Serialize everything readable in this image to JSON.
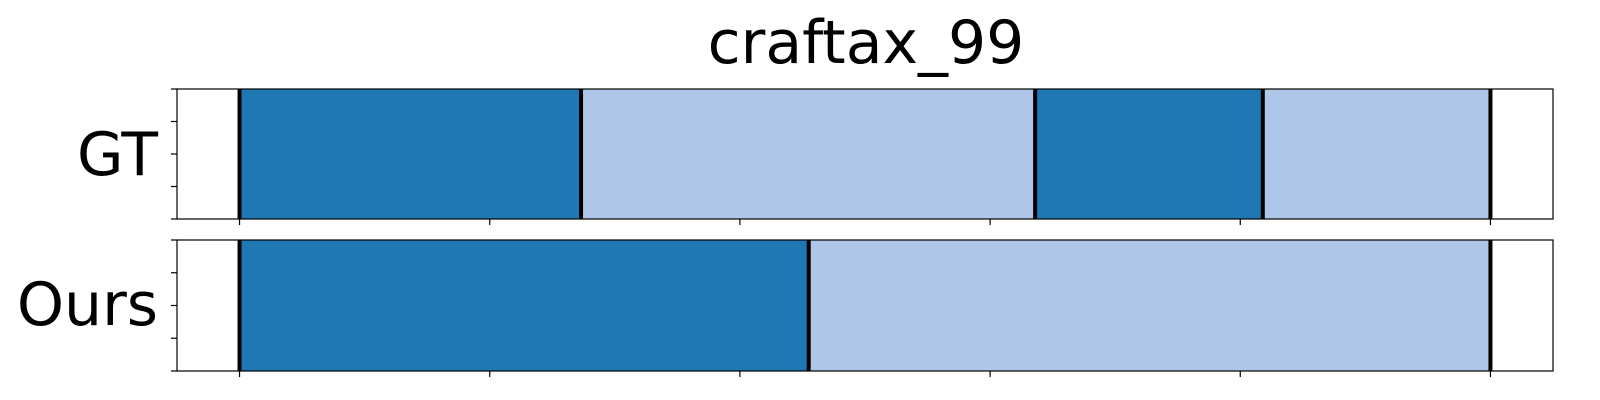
{
  "chart_data": {
    "type": "bar",
    "title": "craftax_99",
    "xlim": [
      0,
      1.1
    ],
    "x_ticks": [
      0.05,
      0.25,
      0.45,
      0.65,
      0.85,
      1.05
    ],
    "rows": [
      {
        "label": "GT",
        "boundaries": [
          0.05,
          0.323,
          0.686,
          0.868,
          1.05
        ],
        "segments": [
          {
            "start": 0.05,
            "end": 0.323,
            "color": "#1f77b4"
          },
          {
            "start": 0.323,
            "end": 0.686,
            "color": "#aec7e8"
          },
          {
            "start": 0.686,
            "end": 0.868,
            "color": "#1f77b4"
          },
          {
            "start": 0.868,
            "end": 1.05,
            "color": "#aec7e8"
          }
        ]
      },
      {
        "label": "Ours",
        "boundaries": [
          0.05,
          0.505,
          1.05
        ],
        "segments": [
          {
            "start": 0.05,
            "end": 0.505,
            "color": "#1f77b4"
          },
          {
            "start": 0.505,
            "end": 1.05,
            "color": "#aec7e8"
          }
        ]
      }
    ],
    "grid": false,
    "legend": "none"
  }
}
